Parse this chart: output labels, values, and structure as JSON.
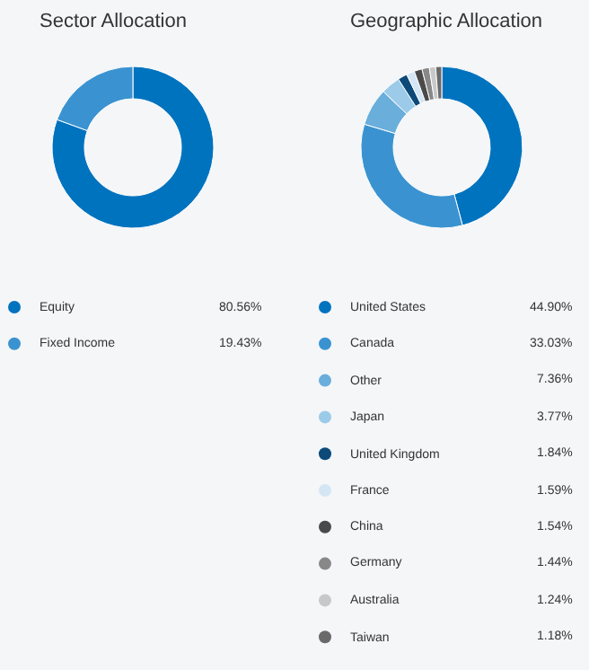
{
  "chart_data": [
    {
      "type": "donut",
      "title": "Sector Allocation",
      "categories": [
        "Equity",
        "Fixed Income"
      ],
      "values": [
        80.56,
        19.43
      ],
      "colors": [
        "#0073bf",
        "#3a93d0"
      ],
      "value_labels": [
        "80.56%",
        "19.43%"
      ],
      "legend": "bottom"
    },
    {
      "type": "donut",
      "title": "Geographic Allocation",
      "categories": [
        "United States",
        "Canada",
        "Other",
        "Japan",
        "United Kingdom",
        "France",
        "China",
        "Germany",
        "Australia",
        "Taiwan"
      ],
      "values": [
        44.9,
        33.03,
        7.36,
        3.77,
        1.84,
        1.59,
        1.54,
        1.44,
        1.24,
        1.18
      ],
      "colors": [
        "#0073bf",
        "#3a93d0",
        "#6aaedc",
        "#9ccbe9",
        "#0c4a7a",
        "#d4e6f4",
        "#4a4a4a",
        "#888888",
        "#c8c8c8",
        "#6a6a6a"
      ],
      "value_labels": [
        "44.90%",
        "33.03%",
        "7.36%",
        "3.77%",
        "1.84%",
        "1.59%",
        "1.54%",
        "1.44%",
        "1.24%",
        "1.18%"
      ],
      "legend": "bottom"
    }
  ]
}
